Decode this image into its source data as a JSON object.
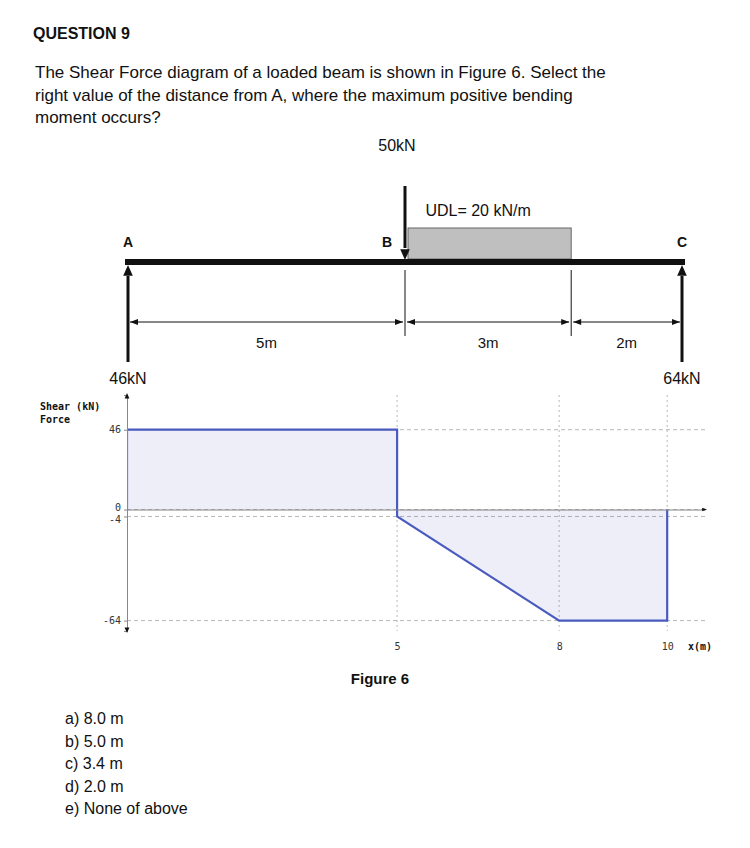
{
  "question": {
    "title": "QUESTION 9",
    "lines": [
      "The Shear Force diagram of a loaded beam is shown in Figure 6. Select the",
      "right value of the distance from A, where the maximum positive bending",
      "moment occurs?"
    ]
  },
  "beam": {
    "points": [
      {
        "label": "A"
      },
      {
        "label": "B"
      },
      {
        "label": "C"
      }
    ],
    "load": {
      "label": "50kN"
    },
    "udl": {
      "label": "UDL= 20 kN/m"
    },
    "reactions": [
      {
        "label": "46kN"
      },
      {
        "label": "64kN"
      }
    ],
    "spans": [
      {
        "length": 5,
        "label": "5m"
      },
      {
        "length": 3,
        "label": "3m"
      },
      {
        "length": 2,
        "label": "2m"
      }
    ]
  },
  "chart_data": {
    "type": "area",
    "y_label": [
      "Shear (kN)",
      "Force"
    ],
    "x_label": "x(m)",
    "x": [
      0,
      0,
      5,
      5,
      8,
      10,
      10
    ],
    "values": [
      0,
      46,
      46,
      -4,
      -64,
      -64,
      0
    ],
    "color": "#4a5bbf",
    "xlim": [
      0,
      10.7
    ],
    "ylim": [
      -70,
      66
    ],
    "xticks": [
      5,
      8,
      10
    ],
    "yticks": [
      46,
      0,
      -4,
      -64
    ],
    "grid": true
  },
  "caption": "Figure 6",
  "options": [
    "a) 8.0 m",
    "b) 5.0 m",
    "c) 3.4 m",
    "d) 2.0 m",
    "e) None of above"
  ]
}
